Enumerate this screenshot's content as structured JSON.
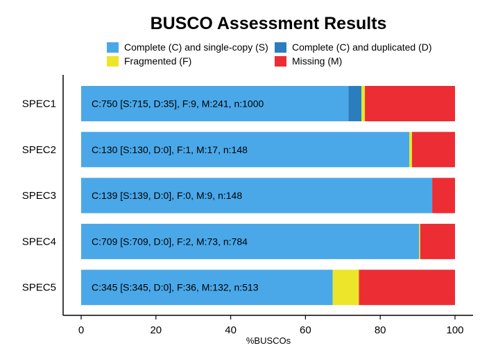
{
  "chart_data": {
    "type": "bar",
    "orientation": "horizontal",
    "stacked": true,
    "title": "BUSCO Assessment Results",
    "xlabel": "%BUSCOs",
    "ylabel": "",
    "xlim": [
      0,
      100
    ],
    "x_ticks": [
      "0",
      "20",
      "40",
      "60",
      "80",
      "100"
    ],
    "categories": [
      "SPEC1",
      "SPEC2",
      "SPEC3",
      "SPEC4",
      "SPEC5"
    ],
    "series": [
      {
        "name": "Complete (C) and single-copy (S)",
        "color": "#4aa8e8",
        "values": [
          71.5,
          87.8,
          93.9,
          90.4,
          67.3
        ]
      },
      {
        "name": "Complete (C) and duplicated (D)",
        "color": "#2a7ebe",
        "values": [
          3.5,
          0.0,
          0.0,
          0.0,
          0.0
        ]
      },
      {
        "name": "Fragmented (F)",
        "color": "#ece52a",
        "values": [
          0.9,
          0.7,
          0.0,
          0.3,
          7.0
        ]
      },
      {
        "name": "Missing (M)",
        "color": "#ec2d34",
        "values": [
          24.1,
          11.5,
          6.1,
          9.3,
          25.7
        ]
      }
    ],
    "bar_labels": [
      "C:750 [S:715, D:35], F:9, M:241, n:1000",
      "C:130 [S:130, D:0], F:1, M:17, n:148",
      "C:139 [S:139, D:0], F:0, M:9, n:148",
      "C:709 [S:709, D:0], F:2, M:73, n:784",
      "C:345 [S:345, D:0], F:36, M:132, n:513"
    ],
    "legend_position": "top",
    "grid": false
  }
}
